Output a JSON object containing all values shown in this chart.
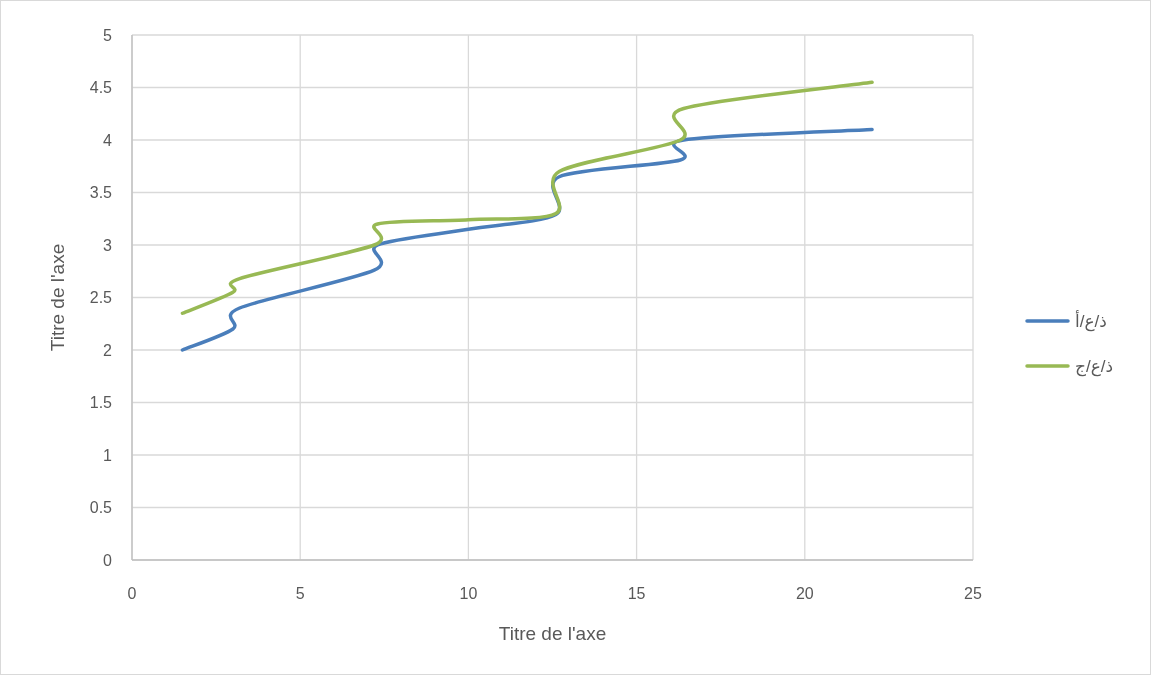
{
  "chart_data": {
    "type": "line",
    "xlabel": "Titre de l'axe",
    "ylabel": "Titre de l'axe",
    "xlim": [
      0,
      25
    ],
    "ylim": [
      0,
      5
    ],
    "xticks": [
      0,
      5,
      10,
      15,
      20,
      25
    ],
    "yticks": [
      0,
      0.5,
      1,
      1.5,
      2,
      2.5,
      3,
      3.5,
      4,
      4.5,
      5
    ],
    "grid": true,
    "legend": "right",
    "marker": "none",
    "line_style": "solid",
    "series": [
      {
        "name": "ذ/ع/أ",
        "color": "#4a7ebb",
        "x": [
          1.5,
          3.0,
          3.2,
          7.2,
          7.3,
          10,
          12.6,
          12.7,
          16.3,
          16.4,
          22
        ],
        "values": [
          2,
          2.2,
          2.4,
          2.76,
          3.0,
          3.15,
          3.29,
          3.65,
          3.81,
          4.0,
          4.1
        ]
      },
      {
        "name": "ذ/ع/ج",
        "color": "#98b954",
        "x": [
          1.5,
          3.0,
          3.2,
          7.2,
          7.3,
          10,
          12.6,
          12.7,
          16.3,
          16.4,
          22
        ],
        "values": [
          2.35,
          2.55,
          2.68,
          3.0,
          3.2,
          3.24,
          3.3,
          3.7,
          4.0,
          4.3,
          4.55
        ]
      }
    ]
  }
}
